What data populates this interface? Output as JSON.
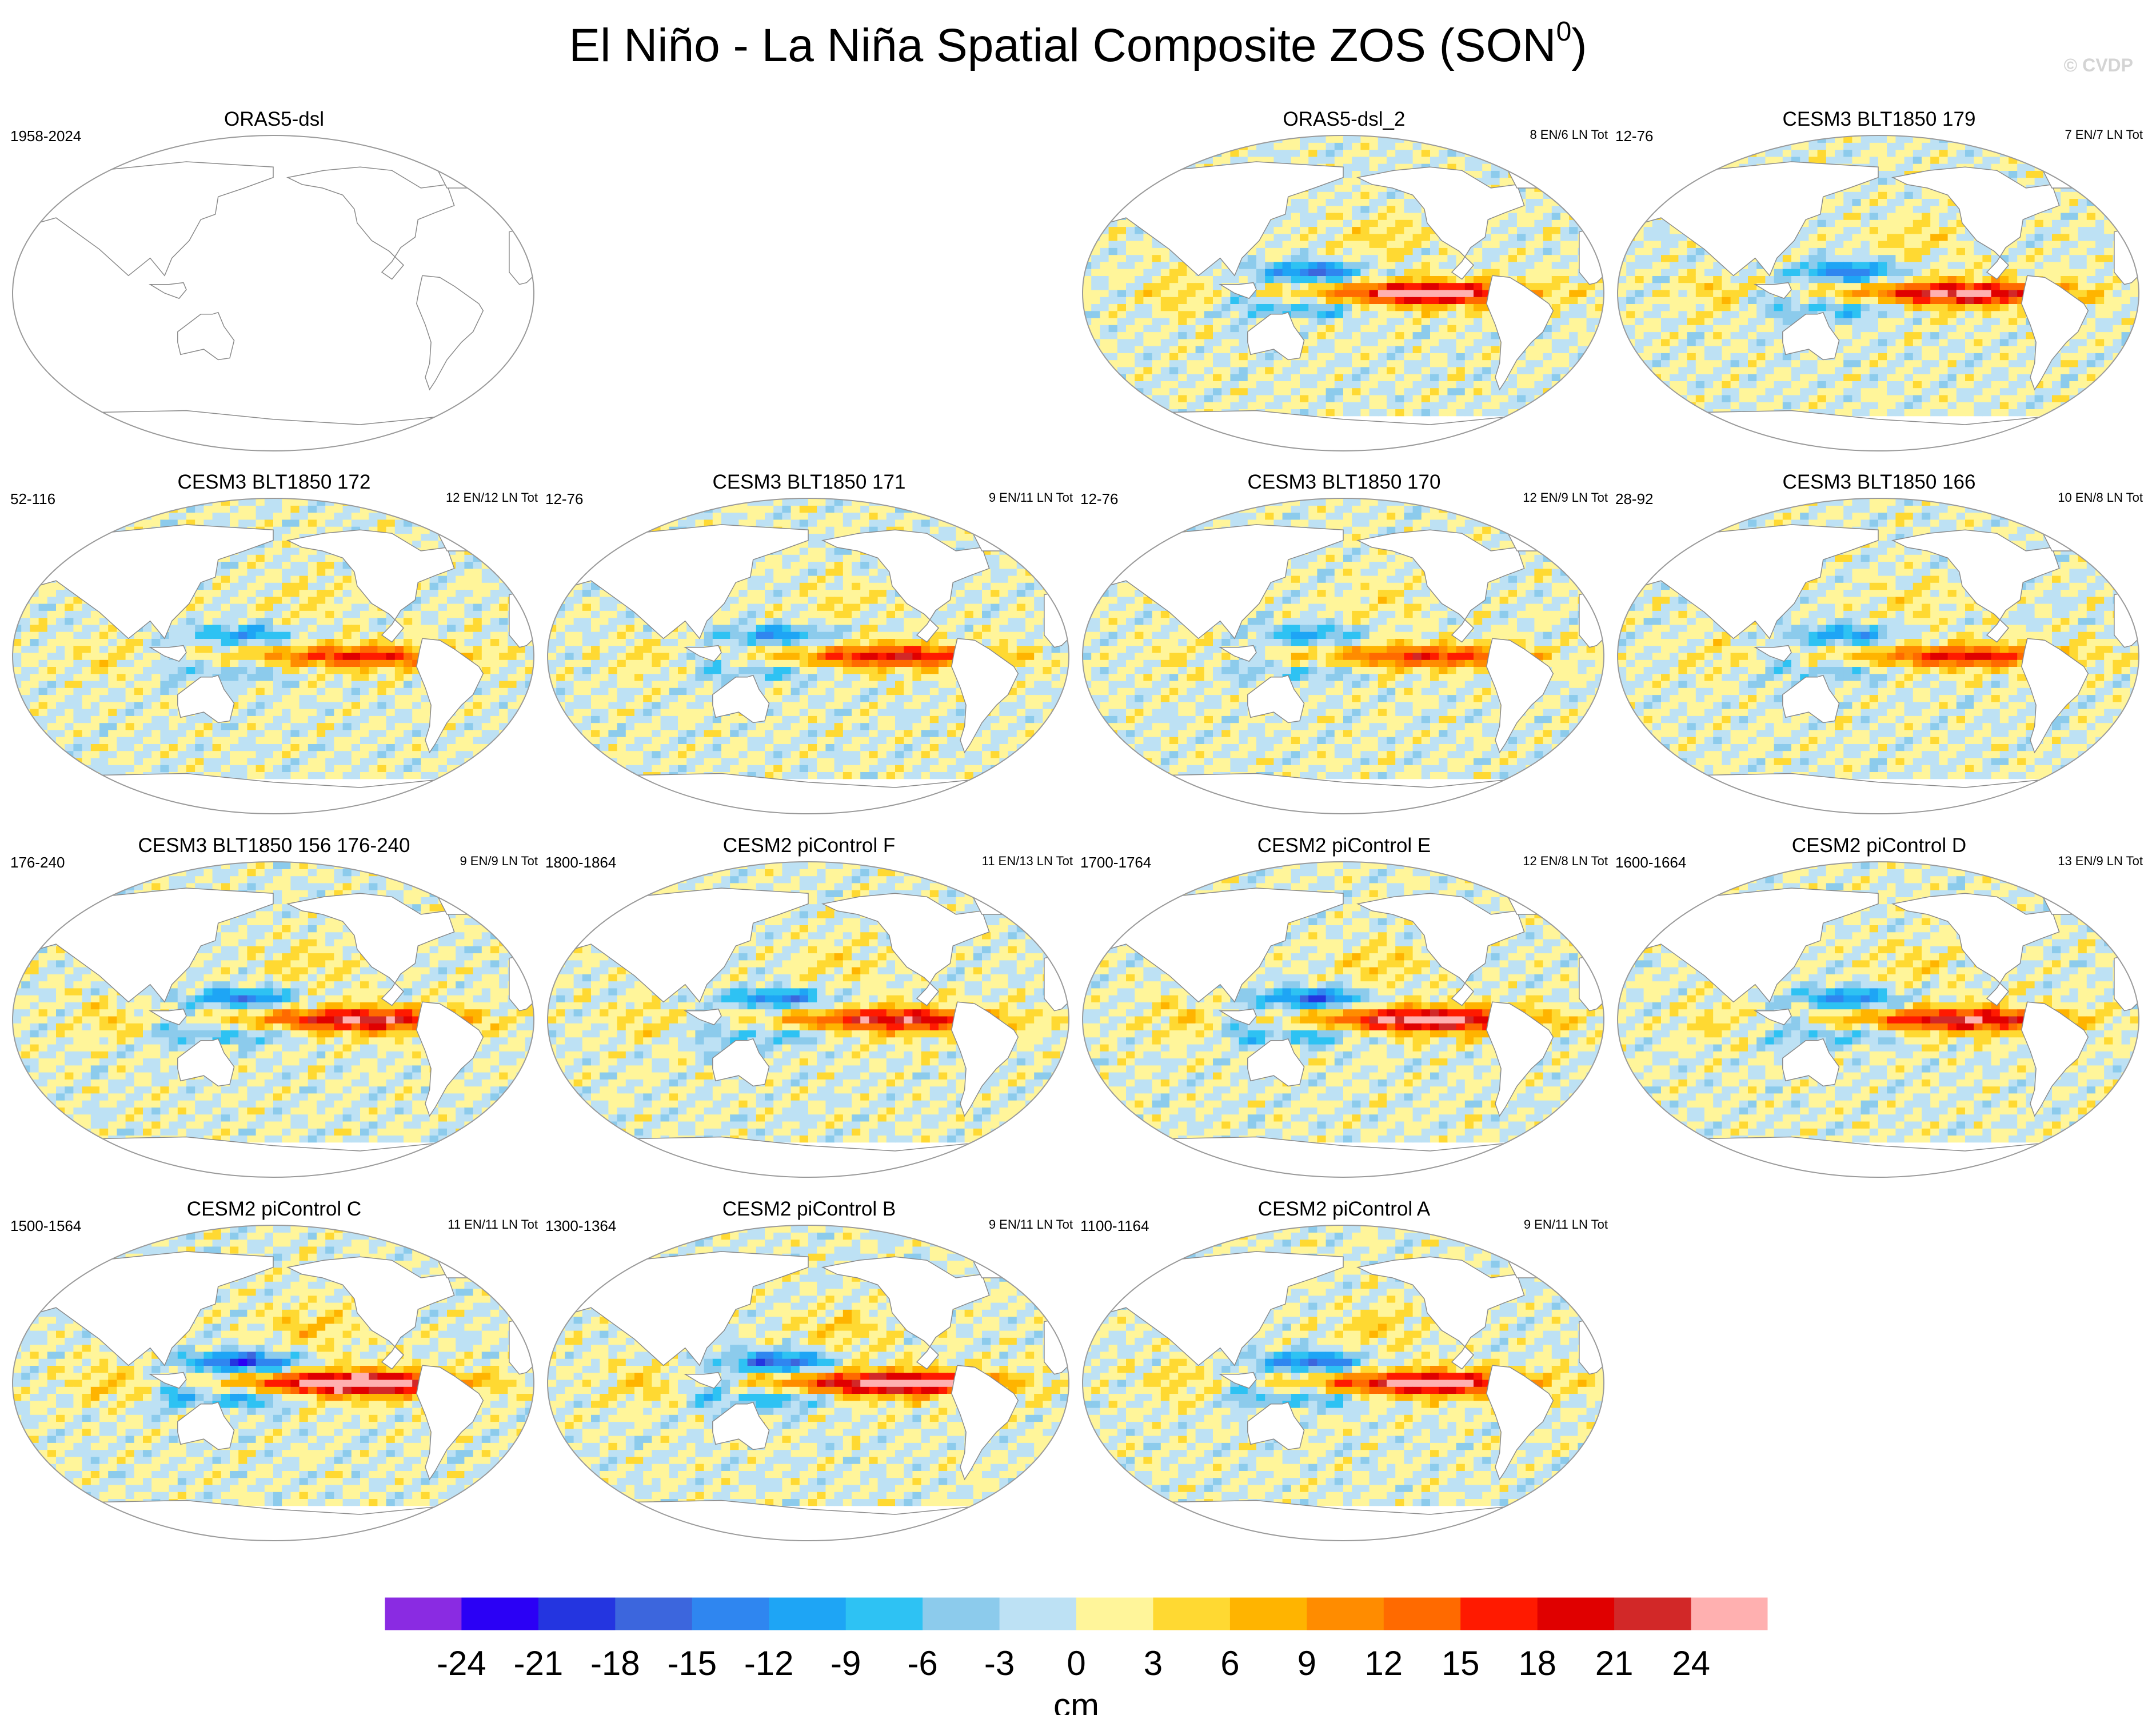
{
  "figure": {
    "title": "El Niño - La Niña Spatial Composite ZOS (SON",
    "title_superscript": "0",
    "title_close": ")",
    "copyright": "© CVDP"
  },
  "chart_data": {
    "type": "heatmap",
    "title": "El Niño - La Niña Spatial Composite ZOS (SON0)",
    "colorbar": {
      "unit": "cm",
      "levels": [
        -24,
        -21,
        -18,
        -15,
        -12,
        -9,
        -6,
        -3,
        0,
        3,
        6,
        9,
        12,
        15,
        18,
        21,
        24
      ],
      "level_labels": [
        "-24",
        "-21",
        "-18",
        "-15",
        "-12",
        "-9",
        "-6",
        "-3",
        "0",
        "3",
        "6",
        "9",
        "12",
        "15",
        "18",
        "21",
        "24"
      ],
      "colors": [
        "#8a2be2",
        "#2b00f5",
        "#2435e0",
        "#3c66dd",
        "#2f86f0",
        "#1ea5f5",
        "#2ec2f3",
        "#8ccbec",
        "#bde1f4",
        "#fff59a",
        "#ffd932",
        "#ffb400",
        "#ff8c00",
        "#ff6a00",
        "#ff1a00",
        "#e00000",
        "#d22828",
        "#ffb0b0"
      ]
    },
    "panels": [
      {
        "title": "ORAS5-dsl",
        "left_label": "1958-2024",
        "right_label": "",
        "empty": true,
        "amp": 0
      },
      {
        "title": "ORAS5-dsl_2",
        "left_label": "",
        "right_label": "8 EN/6 LN Tot",
        "empty": false,
        "amp": 20
      },
      {
        "title": "CESM3 BLT1850 179",
        "left_label": "12-76",
        "right_label": "7 EN/7 LN Tot",
        "empty": false,
        "amp": 19
      },
      {
        "title": "CESM3 BLT1850 172",
        "left_label": "52-116",
        "right_label": "12 EN/12 LN Tot",
        "empty": false,
        "amp": 13
      },
      {
        "title": "CESM3 BLT1850 171",
        "left_label": "12-76",
        "right_label": "9 EN/11 LN Tot",
        "empty": false,
        "amp": 15
      },
      {
        "title": "CESM3 BLT1850 170",
        "left_label": "12-76",
        "right_label": "12 EN/9 LN Tot",
        "empty": false,
        "amp": 13
      },
      {
        "title": "CESM3 BLT1850 166",
        "left_label": "28-92",
        "right_label": "10 EN/8 LN Tot",
        "empty": false,
        "amp": 14
      },
      {
        "title": "CESM3 BLT1850 156 176-240",
        "left_label": "176-240",
        "right_label": "9 EN/9 LN Tot",
        "empty": false,
        "amp": 18
      },
      {
        "title": "CESM2 piControl F",
        "left_label": "1800-1864",
        "right_label": "11 EN/13 LN Tot",
        "empty": false,
        "amp": 17
      },
      {
        "title": "CESM2 piControl E",
        "left_label": "1700-1764",
        "right_label": "12 EN/8 LN Tot",
        "empty": false,
        "amp": 21
      },
      {
        "title": "CESM2 piControl D",
        "left_label": "1600-1664",
        "right_label": "13 EN/9 LN Tot",
        "empty": false,
        "amp": 17
      },
      {
        "title": "CESM2 piControl C",
        "left_label": "1500-1564",
        "right_label": "11 EN/11 LN Tot",
        "empty": false,
        "amp": 24
      },
      {
        "title": "CESM2 piControl B",
        "left_label": "1300-1364",
        "right_label": "9 EN/11 LN Tot",
        "empty": false,
        "amp": 22
      },
      {
        "title": "CESM2 piControl A",
        "left_label": "1100-1164",
        "right_label": "9 EN/11 LN Tot",
        "empty": false,
        "amp": 20
      }
    ]
  }
}
